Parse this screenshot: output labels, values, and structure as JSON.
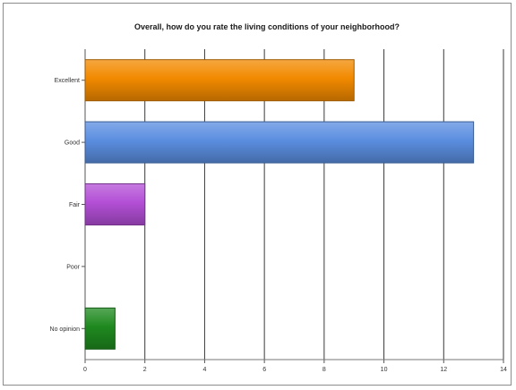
{
  "chart_data": {
    "type": "bar",
    "orientation": "horizontal",
    "title": "Overall, how do you rate the living conditions of your neighborhood?",
    "xlabel": "",
    "ylabel": "",
    "categories": [
      "Excellent",
      "Good",
      "Fair",
      "Poor",
      "No opinion"
    ],
    "values": [
      9,
      13,
      2,
      0,
      1
    ],
    "colors": [
      "#f28a00",
      "#5b8ee0",
      "#b34fd6",
      "#999999",
      "#1f8a1f"
    ],
    "xlim": [
      0,
      14
    ],
    "xticks": [
      0,
      2,
      4,
      6,
      8,
      10,
      12,
      14
    ],
    "xtick_labels": [
      "0",
      "2",
      "4",
      "6",
      "8",
      "10",
      "12",
      "14"
    ],
    "grid": true,
    "legend": "none"
  }
}
